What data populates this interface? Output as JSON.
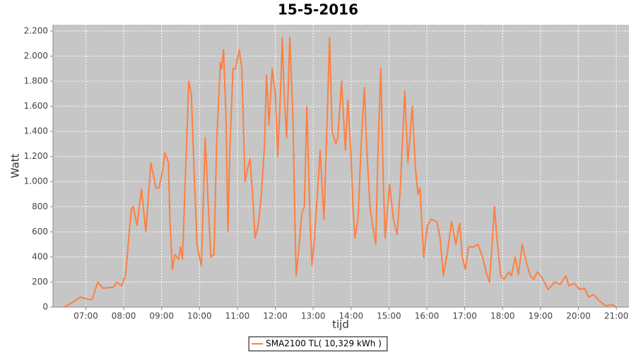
{
  "chart_data": {
    "type": "line",
    "title": "15-5-2016",
    "x_label": "tijd",
    "y_label": "Watt",
    "x": [
      "06:25",
      "06:33",
      "06:43",
      "06:51",
      "06:59",
      "07:04",
      "07:10",
      "07:19",
      "07:27",
      "07:44",
      "07:49",
      "07:57",
      "08:03",
      "08:12",
      "08:15",
      "08:21",
      "08:28",
      "08:35",
      "08:43",
      "08:51",
      "08:56",
      "09:02",
      "09:05",
      "09:11",
      "09:13",
      "09:17",
      "09:21",
      "09:27",
      "09:30",
      "09:33",
      "09:43",
      "09:47",
      "09:52",
      "09:56",
      "10:00",
      "10:03",
      "10:09",
      "10:14",
      "10:18",
      "10:23",
      "10:27",
      "10:33",
      "10:35",
      "10:38",
      "10:42",
      "10:45",
      "10:48",
      "10:53",
      "10:57",
      "11:03",
      "11:07",
      "11:12",
      "11:16",
      "11:20",
      "11:24",
      "11:28",
      "11:33",
      "11:38",
      "11:43",
      "11:46",
      "11:50",
      "11:55",
      "12:00",
      "12:04",
      "12:09",
      "12:11",
      "12:14",
      "12:18",
      "12:23",
      "12:28",
      "12:31",
      "12:33",
      "12:38",
      "12:42",
      "12:46",
      "12:50",
      "12:55",
      "12:58",
      "13:02",
      "13:08",
      "13:11",
      "13:17",
      "13:21",
      "13:26",
      "13:30",
      "13:36",
      "13:39",
      "13:45",
      "13:51",
      "13:55",
      "14:00",
      "14:03",
      "14:06",
      "14:11",
      "14:16",
      "14:21",
      "14:25",
      "14:30",
      "14:34",
      "14:39",
      "14:43",
      "14:47",
      "14:51",
      "14:54",
      "15:01",
      "15:07",
      "15:13",
      "15:18",
      "15:25",
      "15:30",
      "15:37",
      "15:42",
      "15:46",
      "15:49",
      "15:55",
      "16:01",
      "16:07",
      "16:16",
      "16:21",
      "16:26",
      "16:33",
      "16:39",
      "16:46",
      "16:52",
      "16:56",
      "17:01",
      "17:06",
      "17:14",
      "17:21",
      "17:28",
      "17:34",
      "17:39",
      "17:42",
      "17:47",
      "17:51",
      "17:57",
      "18:02",
      "18:10",
      "18:14",
      "18:20",
      "18:25",
      "18:31",
      "18:38",
      "18:44",
      "18:49",
      "18:55",
      "19:03",
      "19:12",
      "19:23",
      "19:31",
      "19:40",
      "19:45",
      "19:53",
      "20:02",
      "20:10",
      "20:16",
      "20:24",
      "20:33",
      "20:43",
      "20:53",
      "21:00"
    ],
    "series": [
      {
        "name": "SMA2100 TL( 10,329 kWh )",
        "color": "#ff7f3f",
        "values": [
          0,
          20,
          50,
          80,
          70,
          60,
          60,
          200,
          150,
          160,
          200,
          170,
          260,
          780,
          800,
          650,
          940,
          600,
          1150,
          950,
          950,
          1100,
          1230,
          1150,
          700,
          300,
          420,
          380,
          480,
          380,
          1800,
          1700,
          1000,
          500,
          400,
          330,
          1350,
          800,
          400,
          420,
          1300,
          1950,
          1900,
          2050,
          1500,
          600,
          1250,
          1900,
          1900,
          2050,
          1900,
          1000,
          1100,
          1180,
          900,
          550,
          650,
          900,
          1300,
          1850,
          1450,
          1900,
          1700,
          1200,
          1800,
          2150,
          1700,
          1350,
          2150,
          1500,
          700,
          250,
          500,
          750,
          800,
          1600,
          700,
          330,
          550,
          1000,
          1250,
          700,
          1300,
          2150,
          1400,
          1300,
          1350,
          1800,
          1250,
          1650,
          1200,
          800,
          550,
          700,
          1300,
          1750,
          1250,
          800,
          650,
          500,
          1300,
          1900,
          1000,
          550,
          980,
          700,
          580,
          950,
          1720,
          1150,
          1600,
          1100,
          900,
          950,
          400,
          650,
          700,
          680,
          550,
          250,
          450,
          680,
          500,
          670,
          400,
          300,
          480,
          480,
          500,
          400,
          280,
          200,
          400,
          800,
          550,
          250,
          220,
          280,
          250,
          400,
          260,
          500,
          350,
          250,
          220,
          280,
          230,
          140,
          200,
          180,
          250,
          170,
          190,
          140,
          150,
          80,
          100,
          50,
          10,
          20,
          0
        ]
      }
    ],
    "xlim": [
      "06:08",
      "21:20"
    ],
    "xticks": [
      "07:00",
      "08:00",
      "09:00",
      "10:00",
      "11:00",
      "12:00",
      "13:00",
      "14:00",
      "15:00",
      "16:00",
      "17:00",
      "18:00",
      "19:00",
      "20:00",
      "21:00"
    ],
    "ylim": [
      0,
      2250
    ],
    "yticks": [
      0,
      200,
      400,
      600,
      800,
      {
        "value": 1000,
        "label": "1.000"
      },
      {
        "value": 1200,
        "label": "1.200"
      },
      {
        "value": 1400,
        "label": "1.400"
      },
      {
        "value": 1600,
        "label": "1.600"
      },
      {
        "value": 1800,
        "label": "1.800"
      },
      {
        "value": 2000,
        "label": "2.000"
      },
      {
        "value": 2200,
        "label": "2.200"
      }
    ],
    "grid": true,
    "plot_background": "#c6c6c6",
    "legend": "bottom"
  }
}
